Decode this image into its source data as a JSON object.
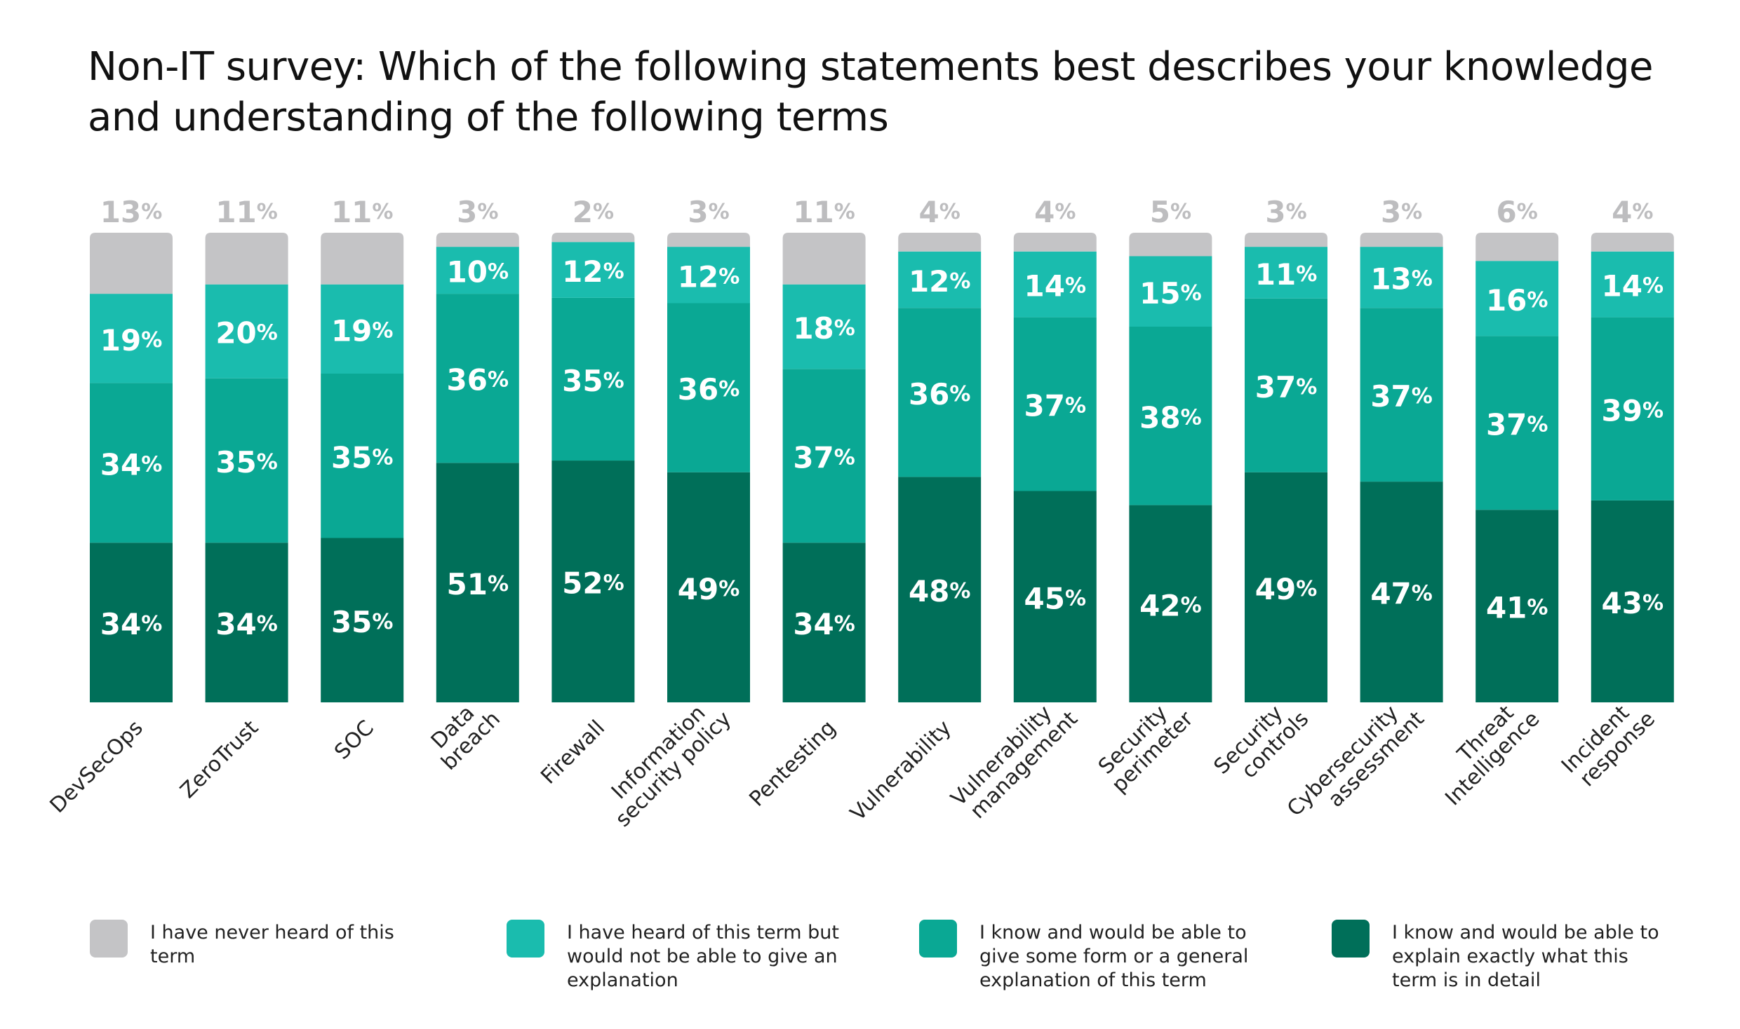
{
  "title": "Non-IT survey: Which of the following statements best describes your knowledge and understanding of the following terms",
  "colors": {
    "never_heard": "#c4c4c6",
    "heard_no_explain": "#1abcae",
    "general_explain": "#0aa894",
    "detail_explain": "#006f59",
    "top_label": "#bdbdbf",
    "bar_label": "#ffffff"
  },
  "legend": [
    {
      "key": "never_heard",
      "label": "I have never heard of this term",
      "color": "#c4c4c6"
    },
    {
      "key": "heard_no_explain",
      "label": "I have heard of this term but would not be able to give an explanation",
      "color": "#1abcae"
    },
    {
      "key": "general_explain",
      "label": "I know and would be able to give some form or a general explanation of this term",
      "color": "#0aa894"
    },
    {
      "key": "detail_explain",
      "label": "I know and would be able to explain exactly what this term is in detail",
      "color": "#006f59"
    }
  ],
  "chart_data": {
    "type": "bar",
    "stacked": true,
    "title": "Non-IT survey: Which of the following statements best describes your knowledge and understanding of the following terms",
    "unit": "%",
    "categories": [
      [
        "DevSecOps"
      ],
      [
        "ZeroTrust"
      ],
      [
        "SOC"
      ],
      [
        "Data",
        "breach"
      ],
      [
        "Firewall"
      ],
      [
        "Information",
        "security policy"
      ],
      [
        "Pentesting"
      ],
      [
        "Vulnerability"
      ],
      [
        "Vulnerability",
        "management"
      ],
      [
        "Security",
        "perimeter"
      ],
      [
        "Security",
        "controls"
      ],
      [
        "Cybersecurity",
        "assessment"
      ],
      [
        "Threat",
        "Intelligence"
      ],
      [
        "Incident",
        "response"
      ]
    ],
    "series": [
      {
        "name": "I know and would be able to explain exactly what this term is in detail",
        "values": [
          34,
          34,
          35,
          51,
          52,
          49,
          34,
          48,
          45,
          42,
          49,
          47,
          41,
          43
        ]
      },
      {
        "name": "I know and would be able to give some form or a general explanation of this term",
        "values": [
          34,
          35,
          35,
          36,
          35,
          36,
          37,
          36,
          37,
          38,
          37,
          37,
          37,
          39
        ]
      },
      {
        "name": "I have heard of this term but would not be able to give an explanation",
        "values": [
          19,
          20,
          19,
          10,
          12,
          12,
          18,
          12,
          14,
          15,
          11,
          13,
          16,
          14
        ]
      },
      {
        "name": "I have never heard of this term",
        "values": [
          13,
          11,
          11,
          3,
          2,
          3,
          11,
          4,
          4,
          5,
          3,
          3,
          6,
          4
        ]
      }
    ]
  }
}
